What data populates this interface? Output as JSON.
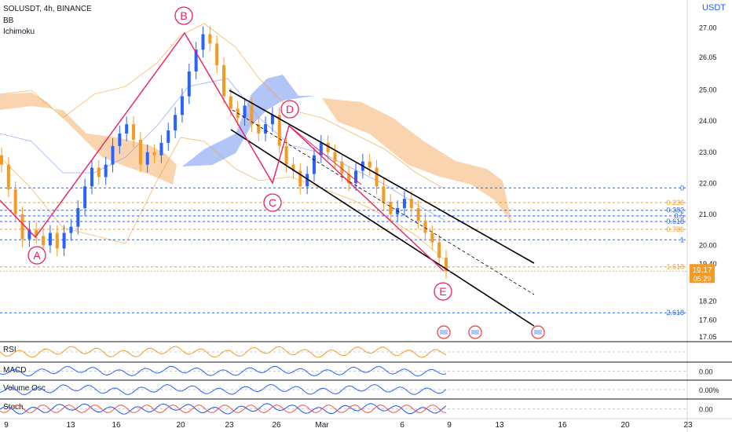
{
  "header": {
    "title": "SOLUSDT, 4h, BINANCE",
    "ind1": "BB",
    "ind2": "Ichimoku",
    "currency": "USDT"
  },
  "colors": {
    "bull": "#26a69a",
    "bear": "#ef5350",
    "blue_candle": "#2962ff",
    "orange_candle": "#f59a23",
    "cloud_orange": "#f7b67a",
    "cloud_blue": "#7f9ff5",
    "wave": "#e91e63",
    "fib_blue": "#2962ff",
    "fib_orange": "#f59a23",
    "rsi": "#f59a23",
    "macd": "#2962ff"
  },
  "chart_data": {
    "type": "candlestick",
    "symbol": "SOLUSDT",
    "interval": "4h",
    "exchange": "BINANCE",
    "price_axis_ticks": [
      "27.00",
      "26.05",
      "25.00",
      "24.00",
      "23.00",
      "22.00",
      "21.00",
      "20.00",
      "19.40",
      "18.20",
      "17.60",
      "17.05"
    ],
    "ylim": [
      16.9,
      27.9
    ],
    "x_tick_labels": [
      "9",
      "13",
      "16",
      "20",
      "23",
      "26",
      "Mar",
      "6",
      "9",
      "13",
      "16",
      "20",
      "23"
    ],
    "last_price": "19.17",
    "countdown": "05:29",
    "fib_levels": [
      {
        "ratio": "0",
        "price": 21.85,
        "color": "blue"
      },
      {
        "ratio": "0.236",
        "price": 21.38,
        "color": "orange"
      },
      {
        "ratio": "0.382",
        "price": 21.13,
        "color": "blue"
      },
      {
        "ratio": "0.5",
        "price": 20.95,
        "color": "blue"
      },
      {
        "ratio": "0.618",
        "price": 20.77,
        "color": "blue"
      },
      {
        "ratio": "0.786",
        "price": 20.52,
        "color": "orange"
      },
      {
        "ratio": "1",
        "price": 20.18,
        "color": "blue"
      },
      {
        "ratio": "1.618",
        "price": 19.31,
        "color": "orange"
      },
      {
        "ratio": "2.618",
        "price": 17.83,
        "color": "blue"
      }
    ],
    "wave_points": [
      {
        "label": "A",
        "date_idx": 10.5,
        "price": 19.58
      },
      {
        "label": "B",
        "date_idx": 20.2,
        "price": 27.1
      },
      {
        "label": "C",
        "date_idx": 26.0,
        "price": 21.5
      },
      {
        "label": "D",
        "date_idx": 27.4,
        "price": 23.5
      },
      {
        "label": "E",
        "date_idx": 34.2,
        "price": 18.95
      }
    ],
    "candles_close_path": [
      22.6,
      21.8,
      21.0,
      20.2,
      20.5,
      20.3,
      20.0,
      20.4,
      19.9,
      20.4,
      20.6,
      21.2,
      21.9,
      22.5,
      22.2,
      22.6,
      23.2,
      23.6,
      23.9,
      23.4,
      22.6,
      23.0,
      22.9,
      23.3,
      23.7,
      24.2,
      24.8,
      25.6,
      26.3,
      26.8,
      26.5,
      25.8,
      24.8,
      24.4,
      24.1,
      24.5,
      23.9,
      23.6,
      23.9,
      24.2,
      23.2,
      22.6,
      22.4,
      21.9,
      22.3,
      22.9,
      23.3,
      23.0,
      22.7,
      22.3,
      22.0,
      22.4,
      22.7,
      22.5,
      21.9,
      21.4,
      21.0,
      21.2,
      21.5,
      21.2,
      20.8,
      20.4,
      20.1,
      19.6,
      19.17
    ],
    "sub_panels": [
      {
        "name": "RSI",
        "value": ""
      },
      {
        "name": "MACD",
        "value": "0.00"
      },
      {
        "name": "Volume Osc",
        "value": "0.00%"
      },
      {
        "name": "Stoch",
        "value": "0.00"
      }
    ],
    "title": "",
    "xlabel": "",
    "ylabel": "USDT"
  }
}
